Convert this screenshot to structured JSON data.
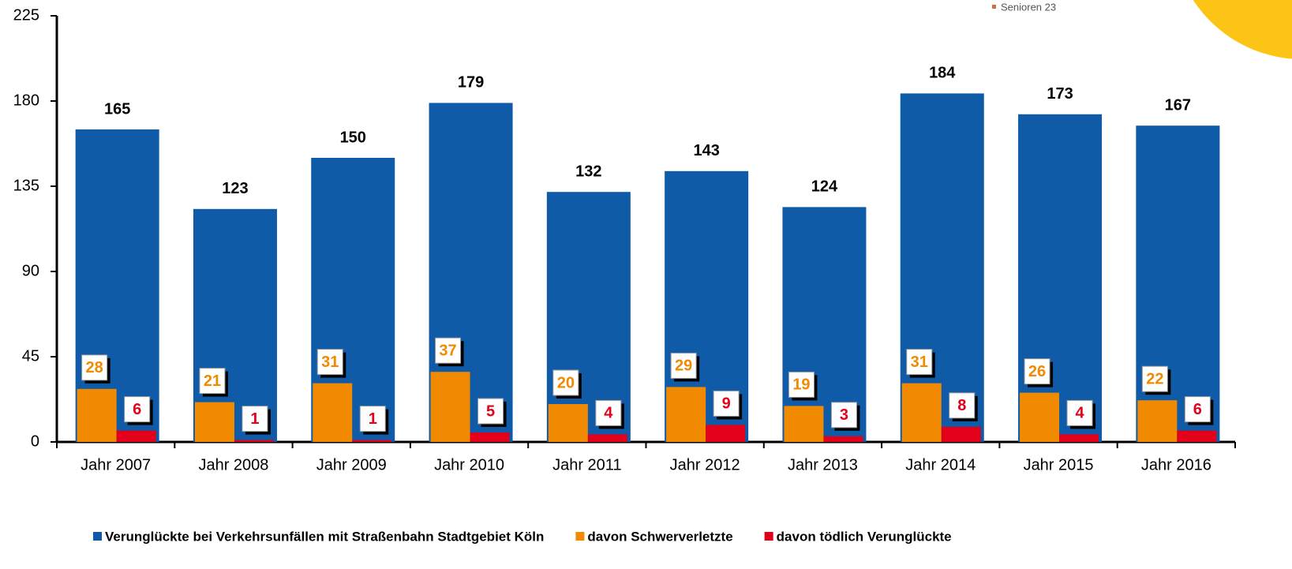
{
  "chart_data": {
    "type": "bar",
    "note": "Senioren 23",
    "categories": [
      "Jahr 2007",
      "Jahr 2008",
      "Jahr 2009",
      "Jahr 2010",
      "Jahr 2011",
      "Jahr 2012",
      "Jahr 2013",
      "Jahr 2014",
      "Jahr 2015",
      "Jahr 2016"
    ],
    "series": [
      {
        "name": "Verunglückte bei Verkehrsunfällen mit Straßenbahn Stadtgebiet Köln",
        "color": "#0f5ba8",
        "values": [
          165,
          123,
          150,
          179,
          132,
          143,
          124,
          184,
          173,
          167
        ]
      },
      {
        "name": "davon Schwerverletzte",
        "color": "#f18a00",
        "values": [
          28,
          21,
          31,
          37,
          20,
          29,
          19,
          31,
          26,
          22
        ]
      },
      {
        "name": "davon tödlich Verunglückte",
        "color": "#e2001a",
        "values": [
          6,
          1,
          1,
          5,
          4,
          9,
          3,
          8,
          4,
          6
        ]
      }
    ],
    "ylim": [
      0,
      225
    ],
    "yticks": [
      0,
      45,
      90,
      135,
      180,
      225
    ]
  }
}
